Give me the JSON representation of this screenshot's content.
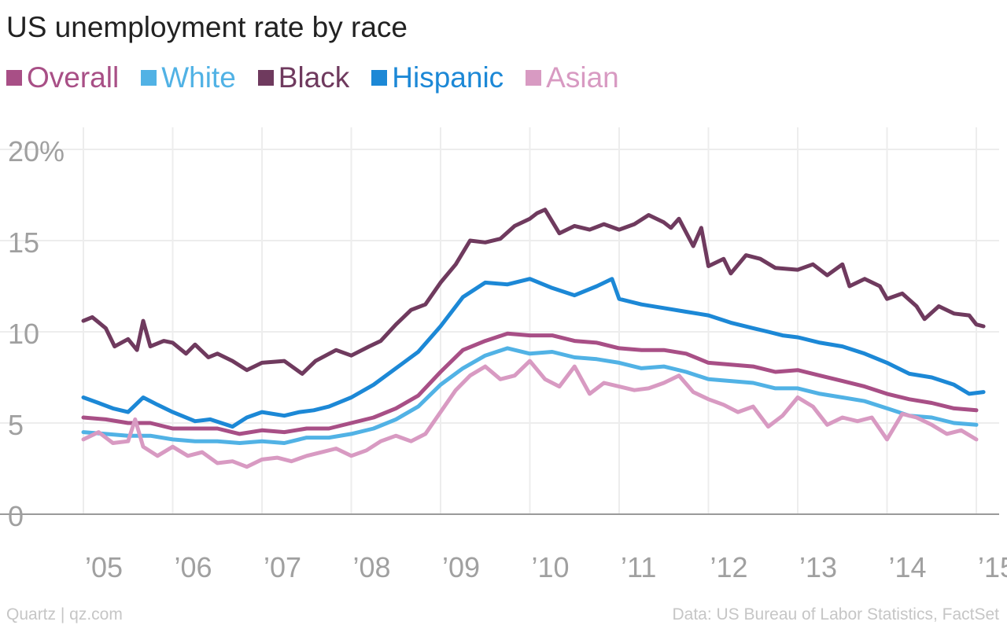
{
  "chart_data": {
    "type": "line",
    "title": "US unemployment rate by race",
    "xlabel": "",
    "ylabel": "",
    "x_unit": "year",
    "xlim": [
      2005,
      2015.08
    ],
    "ylim": [
      0,
      21
    ],
    "grid": true,
    "legend_placement": "top-left",
    "y_ticks": [
      {
        "value": 0,
        "label": "0"
      },
      {
        "value": 5,
        "label": "5"
      },
      {
        "value": 10,
        "label": "10"
      },
      {
        "value": 15,
        "label": "15"
      },
      {
        "value": 20,
        "label": "20%"
      }
    ],
    "x_ticks": [
      {
        "value": 2005,
        "label": "’05"
      },
      {
        "value": 2006,
        "label": "’06"
      },
      {
        "value": 2007,
        "label": "’07"
      },
      {
        "value": 2008,
        "label": "’08"
      },
      {
        "value": 2009,
        "label": "’09"
      },
      {
        "value": 2010,
        "label": "’10"
      },
      {
        "value": 2011,
        "label": "’11"
      },
      {
        "value": 2012,
        "label": "’12"
      },
      {
        "value": 2013,
        "label": "’13"
      },
      {
        "value": 2014,
        "label": "’14"
      },
      {
        "value": 2015,
        "label": "’15"
      }
    ],
    "series": [
      {
        "name": "Overall",
        "color": "#a84f86",
        "points": [
          [
            2005.0,
            5.3
          ],
          [
            2005.25,
            5.2
          ],
          [
            2005.5,
            5.0
          ],
          [
            2005.75,
            5.0
          ],
          [
            2006.0,
            4.7
          ],
          [
            2006.25,
            4.7
          ],
          [
            2006.5,
            4.7
          ],
          [
            2006.75,
            4.4
          ],
          [
            2007.0,
            4.6
          ],
          [
            2007.25,
            4.5
          ],
          [
            2007.5,
            4.7
          ],
          [
            2007.75,
            4.7
          ],
          [
            2008.0,
            5.0
          ],
          [
            2008.25,
            5.3
          ],
          [
            2008.5,
            5.8
          ],
          [
            2008.75,
            6.5
          ],
          [
            2009.0,
            7.8
          ],
          [
            2009.25,
            9.0
          ],
          [
            2009.5,
            9.5
          ],
          [
            2009.75,
            9.9
          ],
          [
            2010.0,
            9.8
          ],
          [
            2010.25,
            9.8
          ],
          [
            2010.5,
            9.5
          ],
          [
            2010.75,
            9.4
          ],
          [
            2011.0,
            9.1
          ],
          [
            2011.25,
            9.0
          ],
          [
            2011.5,
            9.0
          ],
          [
            2011.75,
            8.8
          ],
          [
            2012.0,
            8.3
          ],
          [
            2012.25,
            8.2
          ],
          [
            2012.5,
            8.1
          ],
          [
            2012.75,
            7.8
          ],
          [
            2013.0,
            7.9
          ],
          [
            2013.25,
            7.6
          ],
          [
            2013.5,
            7.3
          ],
          [
            2013.75,
            7.0
          ],
          [
            2014.0,
            6.6
          ],
          [
            2014.25,
            6.3
          ],
          [
            2014.5,
            6.1
          ],
          [
            2014.75,
            5.8
          ],
          [
            2015.0,
            5.7
          ]
        ]
      },
      {
        "name": "White",
        "color": "#51b2e5",
        "points": [
          [
            2005.0,
            4.5
          ],
          [
            2005.25,
            4.4
          ],
          [
            2005.5,
            4.3
          ],
          [
            2005.75,
            4.3
          ],
          [
            2006.0,
            4.1
          ],
          [
            2006.25,
            4.0
          ],
          [
            2006.5,
            4.0
          ],
          [
            2006.75,
            3.9
          ],
          [
            2007.0,
            4.0
          ],
          [
            2007.25,
            3.9
          ],
          [
            2007.5,
            4.2
          ],
          [
            2007.75,
            4.2
          ],
          [
            2008.0,
            4.4
          ],
          [
            2008.25,
            4.7
          ],
          [
            2008.5,
            5.2
          ],
          [
            2008.75,
            5.9
          ],
          [
            2009.0,
            7.1
          ],
          [
            2009.25,
            8.0
          ],
          [
            2009.5,
            8.7
          ],
          [
            2009.75,
            9.1
          ],
          [
            2010.0,
            8.8
          ],
          [
            2010.25,
            8.9
          ],
          [
            2010.5,
            8.6
          ],
          [
            2010.75,
            8.5
          ],
          [
            2011.0,
            8.3
          ],
          [
            2011.25,
            8.0
          ],
          [
            2011.5,
            8.1
          ],
          [
            2011.75,
            7.8
          ],
          [
            2012.0,
            7.4
          ],
          [
            2012.25,
            7.3
          ],
          [
            2012.5,
            7.2
          ],
          [
            2012.75,
            6.9
          ],
          [
            2013.0,
            6.9
          ],
          [
            2013.25,
            6.6
          ],
          [
            2013.5,
            6.4
          ],
          [
            2013.75,
            6.2
          ],
          [
            2014.0,
            5.8
          ],
          [
            2014.25,
            5.4
          ],
          [
            2014.5,
            5.3
          ],
          [
            2014.75,
            5.0
          ],
          [
            2015.0,
            4.9
          ]
        ]
      },
      {
        "name": "Black",
        "color": "#6f3a5e",
        "points": [
          [
            2005.0,
            10.6
          ],
          [
            2005.1,
            10.8
          ],
          [
            2005.25,
            10.2
          ],
          [
            2005.35,
            9.2
          ],
          [
            2005.5,
            9.6
          ],
          [
            2005.6,
            9.0
          ],
          [
            2005.67,
            10.6
          ],
          [
            2005.75,
            9.2
          ],
          [
            2005.9,
            9.5
          ],
          [
            2006.0,
            9.4
          ],
          [
            2006.15,
            8.8
          ],
          [
            2006.25,
            9.3
          ],
          [
            2006.4,
            8.6
          ],
          [
            2006.5,
            8.8
          ],
          [
            2006.67,
            8.4
          ],
          [
            2006.83,
            7.9
          ],
          [
            2007.0,
            8.3
          ],
          [
            2007.25,
            8.4
          ],
          [
            2007.45,
            7.7
          ],
          [
            2007.6,
            8.4
          ],
          [
            2007.83,
            9.0
          ],
          [
            2008.0,
            8.7
          ],
          [
            2008.2,
            9.2
          ],
          [
            2008.33,
            9.5
          ],
          [
            2008.5,
            10.4
          ],
          [
            2008.67,
            11.2
          ],
          [
            2008.83,
            11.5
          ],
          [
            2009.0,
            12.7
          ],
          [
            2009.17,
            13.7
          ],
          [
            2009.33,
            15.0
          ],
          [
            2009.5,
            14.9
          ],
          [
            2009.67,
            15.1
          ],
          [
            2009.83,
            15.8
          ],
          [
            2010.0,
            16.2
          ],
          [
            2010.08,
            16.5
          ],
          [
            2010.17,
            16.7
          ],
          [
            2010.33,
            15.4
          ],
          [
            2010.5,
            15.8
          ],
          [
            2010.67,
            15.6
          ],
          [
            2010.83,
            15.9
          ],
          [
            2011.0,
            15.6
          ],
          [
            2011.17,
            15.9
          ],
          [
            2011.33,
            16.4
          ],
          [
            2011.5,
            16.0
          ],
          [
            2011.58,
            15.7
          ],
          [
            2011.67,
            16.2
          ],
          [
            2011.83,
            14.7
          ],
          [
            2011.92,
            15.7
          ],
          [
            2012.0,
            13.6
          ],
          [
            2012.17,
            14.0
          ],
          [
            2012.25,
            13.2
          ],
          [
            2012.42,
            14.2
          ],
          [
            2012.58,
            14.0
          ],
          [
            2012.75,
            13.5
          ],
          [
            2013.0,
            13.4
          ],
          [
            2013.17,
            13.7
          ],
          [
            2013.33,
            13.1
          ],
          [
            2013.5,
            13.7
          ],
          [
            2013.58,
            12.5
          ],
          [
            2013.75,
            12.9
          ],
          [
            2013.92,
            12.5
          ],
          [
            2014.0,
            11.8
          ],
          [
            2014.17,
            12.1
          ],
          [
            2014.33,
            11.4
          ],
          [
            2014.42,
            10.7
          ],
          [
            2014.58,
            11.4
          ],
          [
            2014.75,
            11.0
          ],
          [
            2014.92,
            10.9
          ],
          [
            2015.0,
            10.4
          ],
          [
            2015.08,
            10.3
          ]
        ]
      },
      {
        "name": "Hispanic",
        "color": "#1c88d6",
        "points": [
          [
            2005.0,
            6.4
          ],
          [
            2005.17,
            6.1
          ],
          [
            2005.33,
            5.8
          ],
          [
            2005.5,
            5.6
          ],
          [
            2005.67,
            6.4
          ],
          [
            2005.83,
            6.0
          ],
          [
            2006.0,
            5.6
          ],
          [
            2006.25,
            5.1
          ],
          [
            2006.42,
            5.2
          ],
          [
            2006.67,
            4.8
          ],
          [
            2006.83,
            5.3
          ],
          [
            2007.0,
            5.6
          ],
          [
            2007.25,
            5.4
          ],
          [
            2007.42,
            5.6
          ],
          [
            2007.58,
            5.7
          ],
          [
            2007.75,
            5.9
          ],
          [
            2008.0,
            6.4
          ],
          [
            2008.25,
            7.1
          ],
          [
            2008.5,
            8.0
          ],
          [
            2008.75,
            8.9
          ],
          [
            2009.0,
            10.3
          ],
          [
            2009.25,
            11.9
          ],
          [
            2009.5,
            12.7
          ],
          [
            2009.75,
            12.6
          ],
          [
            2010.0,
            12.9
          ],
          [
            2010.25,
            12.4
          ],
          [
            2010.5,
            12.0
          ],
          [
            2010.75,
            12.5
          ],
          [
            2010.92,
            12.9
          ],
          [
            2011.0,
            11.8
          ],
          [
            2011.25,
            11.5
          ],
          [
            2011.5,
            11.3
          ],
          [
            2011.75,
            11.1
          ],
          [
            2012.0,
            10.9
          ],
          [
            2012.25,
            10.5
          ],
          [
            2012.5,
            10.2
          ],
          [
            2012.67,
            10.0
          ],
          [
            2012.83,
            9.8
          ],
          [
            2013.0,
            9.7
          ],
          [
            2013.25,
            9.4
          ],
          [
            2013.5,
            9.2
          ],
          [
            2013.75,
            8.8
          ],
          [
            2014.0,
            8.3
          ],
          [
            2014.25,
            7.7
          ],
          [
            2014.5,
            7.5
          ],
          [
            2014.75,
            7.1
          ],
          [
            2014.92,
            6.6
          ],
          [
            2015.08,
            6.7
          ]
        ]
      },
      {
        "name": "Asian",
        "color": "#d89ac2",
        "points": [
          [
            2005.0,
            4.1
          ],
          [
            2005.17,
            4.5
          ],
          [
            2005.33,
            3.9
          ],
          [
            2005.5,
            4.0
          ],
          [
            2005.58,
            5.2
          ],
          [
            2005.67,
            3.7
          ],
          [
            2005.83,
            3.2
          ],
          [
            2006.0,
            3.7
          ],
          [
            2006.17,
            3.2
          ],
          [
            2006.33,
            3.4
          ],
          [
            2006.5,
            2.8
          ],
          [
            2006.67,
            2.9
          ],
          [
            2006.83,
            2.6
          ],
          [
            2007.0,
            3.0
          ],
          [
            2007.17,
            3.1
          ],
          [
            2007.33,
            2.9
          ],
          [
            2007.5,
            3.2
          ],
          [
            2007.67,
            3.4
          ],
          [
            2007.83,
            3.6
          ],
          [
            2008.0,
            3.2
          ],
          [
            2008.17,
            3.5
          ],
          [
            2008.33,
            4.0
          ],
          [
            2008.5,
            4.3
          ],
          [
            2008.67,
            4.0
          ],
          [
            2008.83,
            4.4
          ],
          [
            2009.0,
            5.6
          ],
          [
            2009.17,
            6.8
          ],
          [
            2009.33,
            7.6
          ],
          [
            2009.5,
            8.1
          ],
          [
            2009.67,
            7.4
          ],
          [
            2009.83,
            7.6
          ],
          [
            2010.0,
            8.4
          ],
          [
            2010.17,
            7.4
          ],
          [
            2010.33,
            7.0
          ],
          [
            2010.5,
            8.1
          ],
          [
            2010.67,
            6.6
          ],
          [
            2010.83,
            7.2
          ],
          [
            2011.0,
            7.0
          ],
          [
            2011.17,
            6.8
          ],
          [
            2011.33,
            6.9
          ],
          [
            2011.5,
            7.2
          ],
          [
            2011.67,
            7.6
          ],
          [
            2011.83,
            6.7
          ],
          [
            2012.0,
            6.3
          ],
          [
            2012.17,
            6.0
          ],
          [
            2012.33,
            5.6
          ],
          [
            2012.5,
            5.9
          ],
          [
            2012.67,
            4.8
          ],
          [
            2012.83,
            5.4
          ],
          [
            2013.0,
            6.4
          ],
          [
            2013.17,
            5.9
          ],
          [
            2013.33,
            4.9
          ],
          [
            2013.5,
            5.3
          ],
          [
            2013.67,
            5.1
          ],
          [
            2013.83,
            5.3
          ],
          [
            2014.0,
            4.1
          ],
          [
            2014.17,
            5.5
          ],
          [
            2014.33,
            5.3
          ],
          [
            2014.5,
            4.9
          ],
          [
            2014.67,
            4.4
          ],
          [
            2014.83,
            4.6
          ],
          [
            2015.0,
            4.1
          ]
        ]
      }
    ]
  },
  "footer": {
    "source_left": "Quartz | qz.com",
    "source_right": "Data: US Bureau of Labor Statistics, FactSet"
  }
}
